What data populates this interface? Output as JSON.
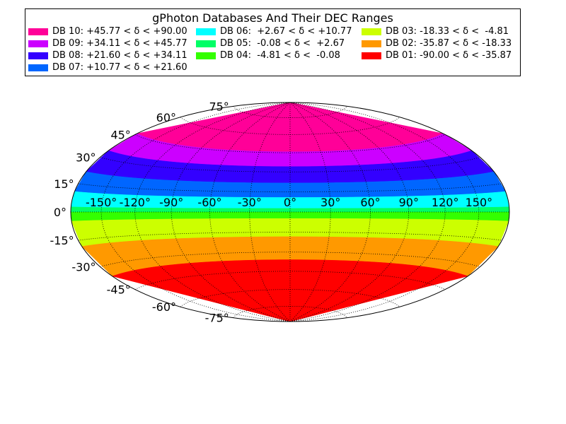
{
  "chart_data": {
    "type": "area",
    "title": "gPhoton Databases And Their DEC Ranges",
    "projection": "Hammer-Aitoff (all-sky)",
    "grid": true,
    "grid_style": "dotted",
    "legend_position": "top",
    "legend_columns": 3,
    "series": [
      {
        "name": "DB 10: +45.77 < δ < +90.00",
        "dec_min": 45.77,
        "dec_max": 90.0,
        "color": "#ff0098"
      },
      {
        "name": "DB 09: +34.11 < δ < +45.77",
        "dec_min": 34.11,
        "dec_max": 45.77,
        "color": "#cc00ff"
      },
      {
        "name": "DB 08: +21.60 < δ < +34.11",
        "dec_min": 21.6,
        "dec_max": 34.11,
        "color": "#3300ff"
      },
      {
        "name": "DB 07: +10.77 < δ < +21.60",
        "dec_min": 10.77,
        "dec_max": 21.6,
        "color": "#0066ff"
      },
      {
        "name": "DB 06:  +2.67 < δ < +10.77",
        "dec_min": 2.67,
        "dec_max": 10.77,
        "color": "#00ffff"
      },
      {
        "name": "DB 05:  -0.08 < δ <  +2.67",
        "dec_min": -0.08,
        "dec_max": 2.67,
        "color": "#00ff66"
      },
      {
        "name": "DB 04:  -4.81 < δ <  -0.08",
        "dec_min": -4.81,
        "dec_max": -0.08,
        "color": "#33ff00"
      },
      {
        "name": "DB 03: -18.33 < δ <  -4.81",
        "dec_min": -18.33,
        "dec_max": -4.81,
        "color": "#ccff00"
      },
      {
        "name": "DB 02: -35.87 < δ < -18.33",
        "dec_min": -35.87,
        "dec_max": -18.33,
        "color": "#ff9900"
      },
      {
        "name": "DB 01: -90.00 < δ < -35.87",
        "dec_min": -90.0,
        "dec_max": -35.87,
        "color": "#ff0000"
      }
    ],
    "lon_ticks": [
      -150,
      -120,
      -90,
      -60,
      -30,
      0,
      30,
      60,
      90,
      120,
      150
    ],
    "lon_tick_labels": [
      "-150°",
      "-120°",
      "-90°",
      "-60°",
      "-30°",
      "0°",
      "30°",
      "60°",
      "90°",
      "120°",
      "150°"
    ],
    "lat_ticks": [
      75,
      60,
      45,
      30,
      15,
      0,
      -15,
      -30,
      -45,
      -60,
      -75
    ],
    "lat_tick_labels": [
      "75°",
      "60°",
      "45°",
      "30°",
      "15°",
      "0°",
      "-15°",
      "-30°",
      "-45°",
      "-60°",
      "-75°"
    ]
  }
}
